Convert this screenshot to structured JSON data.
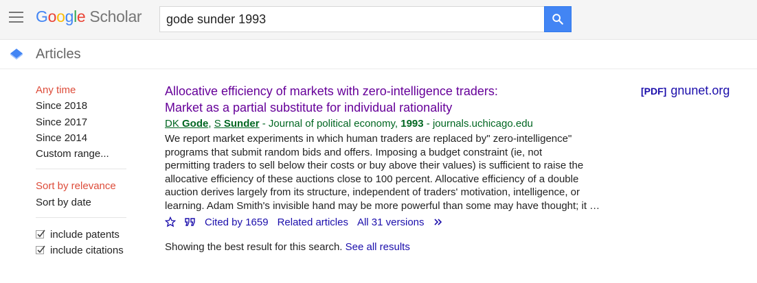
{
  "header": {
    "logo_parts": {
      "g1": "G",
      "o1": "o",
      "o2": "o",
      "g2": "g",
      "l": "l",
      "e": "e"
    },
    "logo_suffix": "Scholar",
    "search_value": "gode sunder 1993",
    "search_button_icon": "search-icon"
  },
  "articles_bar": {
    "label": "Articles",
    "icon": "scholar-cap-icon"
  },
  "sidebar": {
    "time_filters": [
      "Any time",
      "Since 2018",
      "Since 2017",
      "Since 2014",
      "Custom range..."
    ],
    "sort_options": [
      "Sort by relevance",
      "Sort by date"
    ],
    "checkboxes": [
      "include patents",
      "include citations"
    ]
  },
  "result": {
    "title_line1": "Allocative efficiency of markets with zero-intelligence traders:",
    "title_line2": "Market as a partial substitute for individual rationality",
    "author1_initials": "DK",
    "author1_name": "Gode",
    "author_sep": ",",
    "author2_initials": "S",
    "author2_name": "Sunder",
    "venue_prefix": " - Journal of political economy, ",
    "year": "1993",
    "venue_suffix": " - journals.uchicago.edu",
    "snippet_lines": [
      "We report market experiments in which human traders are replaced by\" zero-intelligence\"",
      "programs that submit random bids and offers. Imposing a budget constraint (ie, not",
      "permitting traders to sell below their costs or buy above their values) is sufficient to raise the",
      "allocative efficiency of these auctions close to 100 percent. Allocative efficiency of a double",
      "auction derives largely from its structure, independent of traders' motivation, intelligence, or",
      "learning. Adam Smith's invisible hand may be more powerful than some may have thought; it …"
    ],
    "actions": {
      "cited_by": "Cited by 1659",
      "related": "Related articles",
      "versions": "All 31 versions"
    },
    "pdf_tag": "[PDF]",
    "pdf_domain": "gnunet.org"
  },
  "footer": {
    "message": "Showing the best result for this search. ",
    "see_all": "See all results"
  },
  "colors": {
    "accent_blue": "#4285f4",
    "link": "#1a0dab",
    "visited_title": "#660099",
    "author_green": "#006621",
    "active_red": "#dd4b39"
  }
}
